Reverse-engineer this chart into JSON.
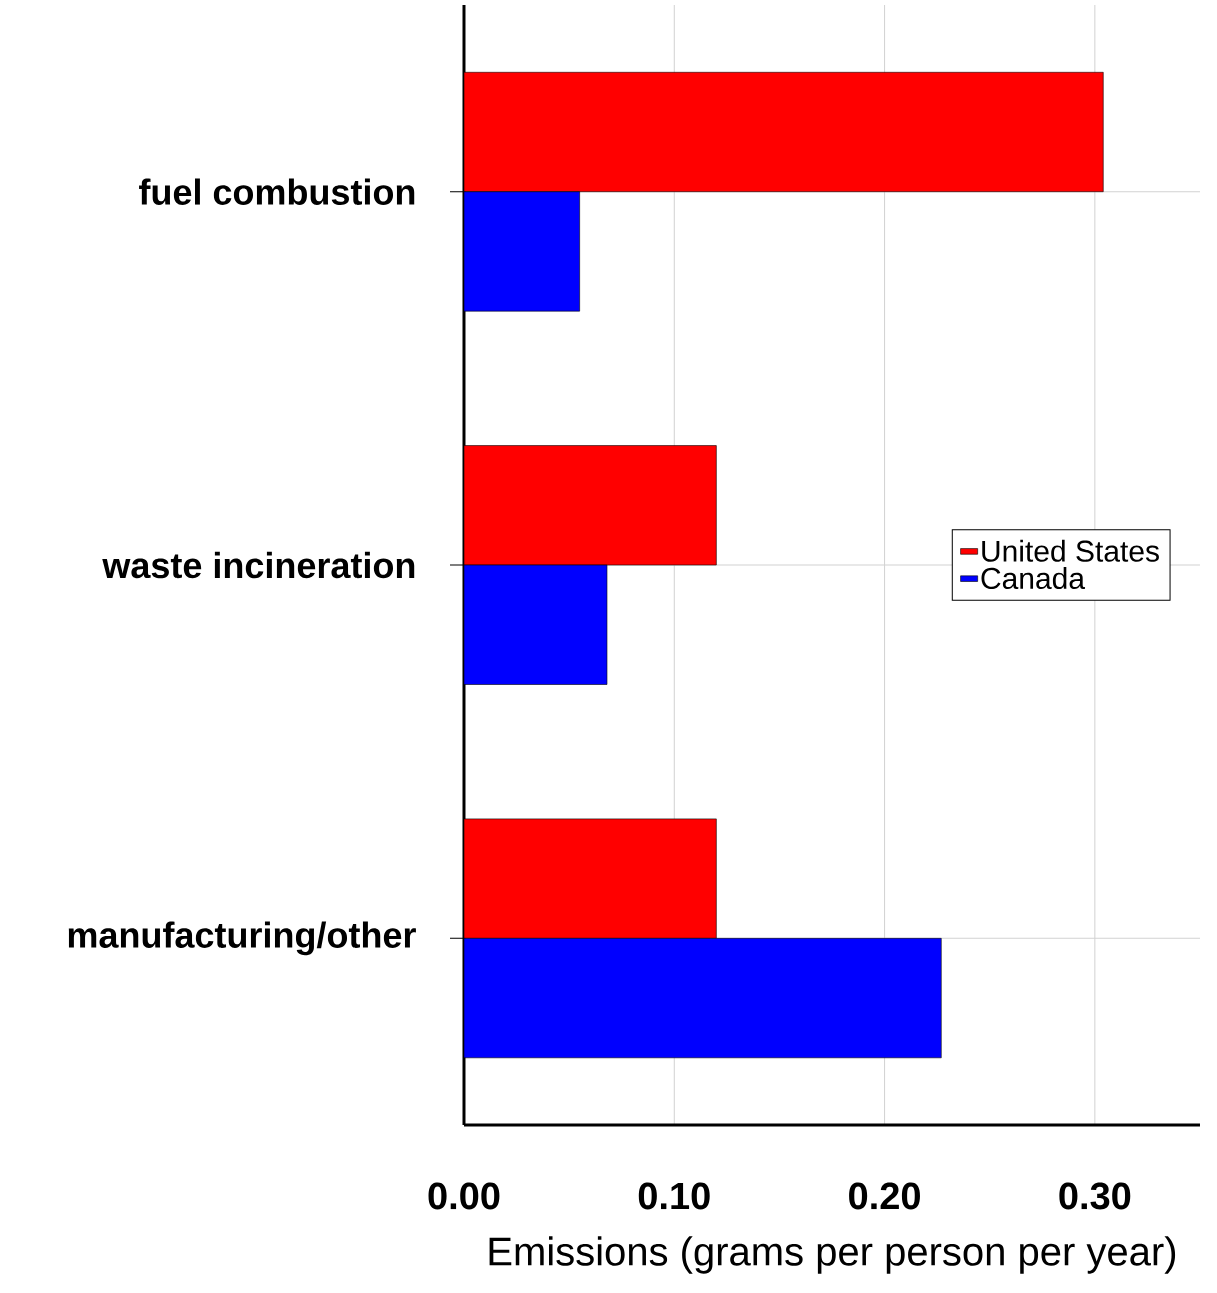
{
  "chart_data": {
    "type": "bar",
    "orientation": "horizontal",
    "categories": [
      "fuel combustion",
      "waste incineration",
      "manufacturing/other"
    ],
    "series": [
      {
        "name": "United States",
        "color": "#ff0000",
        "values": [
          0.304,
          0.12,
          0.12
        ]
      },
      {
        "name": "Canada",
        "color": "#0000ff",
        "values": [
          0.055,
          0.068,
          0.227
        ]
      }
    ],
    "xlabel": "Emissions (grams per person per year)",
    "xlim": [
      0,
      0.35
    ],
    "xticks": [
      {
        "value": 0,
        "label": "0.00"
      },
      {
        "value": 0.1,
        "label": "0.10"
      },
      {
        "value": 0.2,
        "label": "0.20"
      },
      {
        "value": 0.3,
        "label": "0.30"
      }
    ],
    "grid": true,
    "legend": "right"
  }
}
